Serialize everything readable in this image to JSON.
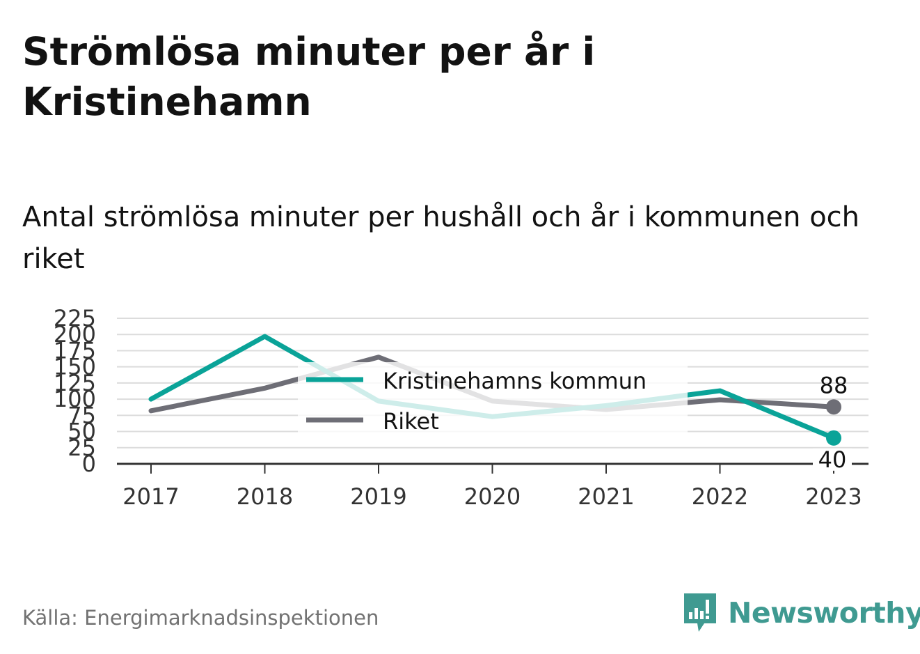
{
  "header": {
    "title": "Strömlösa minuter per år i Kristinehamn",
    "subtitle": "Antal strömlösa minuter per hushåll och år i kommunen och riket"
  },
  "footer": {
    "source": "Källa: Energimarknadsinspektionen",
    "brand": "Newsworthy"
  },
  "colors": {
    "kommun": "#0aa398",
    "riket": "#6e6e76",
    "grid": "#dcdcdc",
    "axis": "#333333",
    "brand": "#3f9a91"
  },
  "chart_data": {
    "type": "line",
    "x": [
      "2017",
      "2018",
      "2019",
      "2020",
      "2021",
      "2022",
      "2023"
    ],
    "series": [
      {
        "name": "Kristinehamns kommun",
        "values": [
          100,
          197,
          97,
          73,
          90,
          113,
          40
        ]
      },
      {
        "name": "Riket",
        "values": [
          82,
          117,
          165,
          97,
          84,
          99,
          88
        ]
      }
    ],
    "ylim": [
      0,
      225
    ],
    "yticks": [
      0,
      25,
      50,
      75,
      100,
      125,
      150,
      175,
      200,
      225
    ],
    "grid": true,
    "legend_placement": "center",
    "end_labels": {
      "Kristinehamns kommun": "40",
      "Riket": "88"
    }
  }
}
